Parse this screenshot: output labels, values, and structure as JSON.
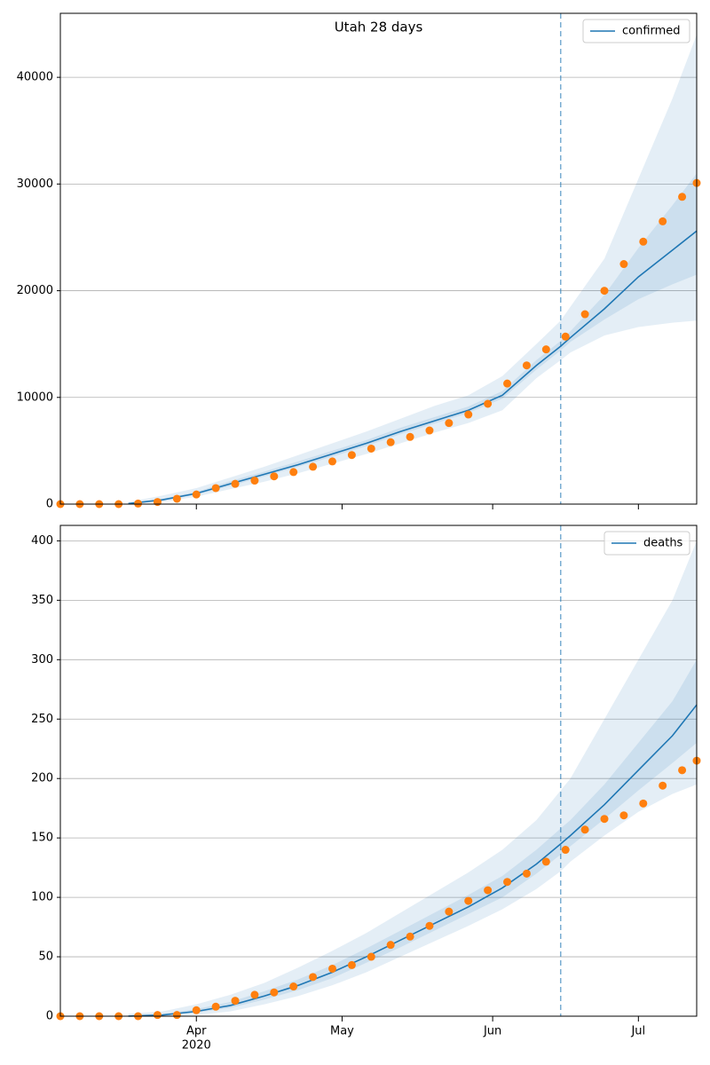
{
  "chart_data": [
    {
      "type": "line",
      "title": "Utah 28 days",
      "x": [
        0,
        4,
        8,
        12,
        16,
        20,
        24,
        28,
        32,
        36,
        40,
        44,
        48,
        52,
        56,
        60,
        64,
        68,
        72,
        76,
        80,
        84,
        88,
        92,
        96,
        100,
        104,
        108,
        112,
        116,
        120,
        124,
        128,
        131
      ],
      "observed": {
        "color": "#ff7f0e",
        "values": [
          0,
          0,
          0,
          0,
          50,
          200,
          500,
          900,
          1500,
          1900,
          2200,
          2600,
          3000,
          3500,
          4000,
          4600,
          5200,
          5800,
          6300,
          6900,
          7600,
          8400,
          9400,
          11300,
          13000,
          14500,
          15700,
          17800,
          20000,
          22500,
          24600,
          26500,
          28800,
          30100
        ]
      },
      "series": [
        {
          "name": "confirmed",
          "color": "#1f77b4",
          "x": [
            14,
            21,
            28,
            35,
            42,
            49,
            56,
            63,
            70,
            77,
            84,
            91,
            98,
            103,
            105,
            112,
            119,
            126,
            131
          ],
          "values": [
            50,
            400,
            1000,
            1900,
            2800,
            3700,
            4700,
            5700,
            6800,
            7800,
            8800,
            10200,
            13000,
            14800,
            15600,
            18300,
            21300,
            23800,
            25600
          ],
          "bands": [
            {
              "lower": [
                0,
                200,
                700,
                1400,
                2100,
                2900,
                3800,
                4700,
                5700,
                6700,
                7600,
                8800,
                11800,
                13500,
                14200,
                15800,
                16600,
                17000,
                17200
              ],
              "upper": [
                200,
                800,
                1500,
                2500,
                3500,
                4600,
                5700,
                6800,
                8000,
                9200,
                10200,
                12000,
                15000,
                17200,
                18500,
                23000,
                30500,
                38000,
                44000
              ]
            },
            {
              "lower": [
                50,
                320,
                880,
                1700,
                2600,
                3500,
                4450,
                5450,
                6550,
                7550,
                8550,
                9900,
                12600,
                14400,
                15200,
                17300,
                19200,
                20600,
                21500
              ],
              "upper": [
                70,
                500,
                1150,
                2150,
                3050,
                4000,
                5000,
                6000,
                7150,
                8150,
                9150,
                10600,
                13500,
                15300,
                16200,
                19600,
                24000,
                28000,
                31000
              ]
            }
          ]
        }
      ],
      "xlim": [
        0,
        131
      ],
      "xticks": [
        28,
        58,
        89,
        119
      ],
      "xticklabels": false,
      "ylim": [
        0,
        46000
      ],
      "yticks": [
        0,
        10000,
        20000,
        30000,
        40000
      ],
      "grid": true,
      "vline": 103,
      "legend": "upper right"
    },
    {
      "type": "line",
      "x": [
        0,
        4,
        8,
        12,
        16,
        20,
        24,
        28,
        32,
        36,
        40,
        44,
        48,
        52,
        56,
        60,
        64,
        68,
        72,
        76,
        80,
        84,
        88,
        92,
        96,
        100,
        104,
        108,
        112,
        116,
        120,
        124,
        128,
        131
      ],
      "observed": {
        "color": "#ff7f0e",
        "values": [
          0,
          0,
          0,
          0,
          0,
          1,
          1,
          5,
          8,
          13,
          18,
          20,
          25,
          33,
          40,
          43,
          50,
          60,
          67,
          76,
          88,
          97,
          106,
          113,
          120,
          130,
          140,
          157,
          166,
          169,
          179,
          194,
          207,
          215
        ]
      },
      "series": [
        {
          "name": "deaths",
          "color": "#1f77b4",
          "x": [
            14,
            21,
            28,
            35,
            42,
            49,
            56,
            63,
            70,
            77,
            84,
            91,
            98,
            103,
            105,
            112,
            119,
            126,
            131
          ],
          "values": [
            0,
            1,
            4,
            9,
            17,
            26,
            37,
            50,
            64,
            78,
            92,
            108,
            128,
            145,
            152,
            178,
            207,
            236,
            262
          ],
          "bands": [
            {
              "lower": [
                0,
                0,
                1,
                4,
                10,
                17,
                26,
                37,
                50,
                63,
                76,
                90,
                107,
                122,
                130,
                152,
                172,
                187,
                195
              ],
              "upper": [
                2,
                4,
                10,
                18,
                28,
                41,
                55,
                70,
                87,
                104,
                121,
                140,
                165,
                190,
                200,
                250,
                300,
                350,
                400
              ]
            },
            {
              "lower": [
                0,
                1,
                3,
                7,
                14,
                22,
                32,
                45,
                58,
                72,
                86,
                100,
                120,
                136,
                143,
                166,
                190,
                213,
                230
              ],
              "upper": [
                1,
                2,
                6,
                12,
                21,
                31,
                43,
                57,
                72,
                87,
                102,
                118,
                140,
                158,
                165,
                195,
                230,
                265,
                300
              ]
            }
          ]
        }
      ],
      "xlim": [
        0,
        131
      ],
      "xticks": [
        {
          "value": 28,
          "label": "Apr"
        },
        {
          "value": 58,
          "label": "May"
        },
        {
          "value": 89,
          "label": "Jun"
        },
        {
          "value": 119,
          "label": "Jul"
        }
      ],
      "year_label": "2020",
      "xticklabels": true,
      "ylim": [
        0,
        413
      ],
      "yticks": [
        0,
        50,
        100,
        150,
        200,
        250,
        300,
        350,
        400
      ],
      "grid": true,
      "vline": 103,
      "legend": "upper right"
    }
  ]
}
